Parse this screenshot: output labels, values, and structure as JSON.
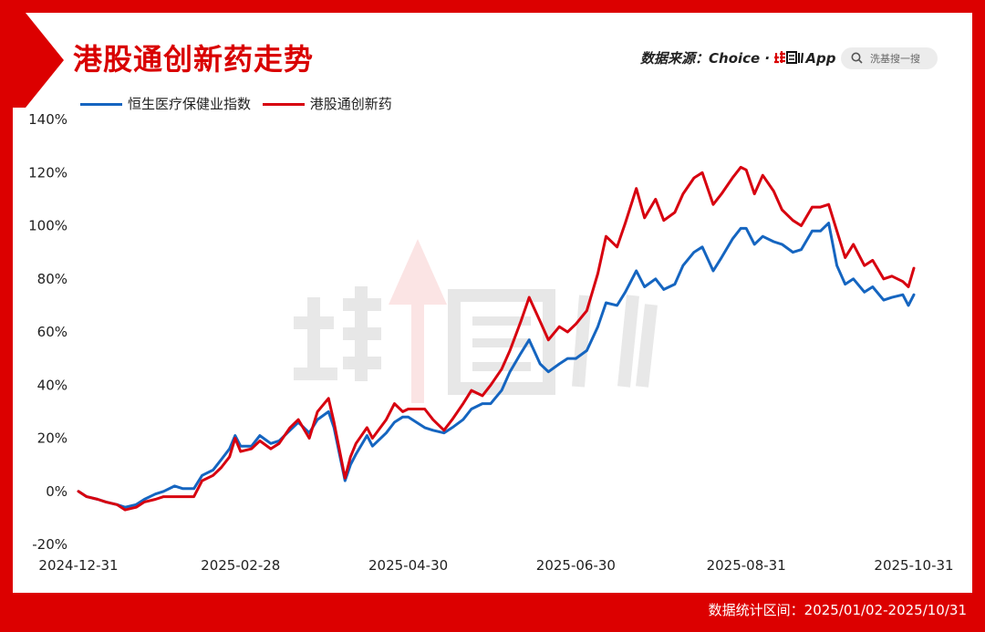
{
  "title": "港股通创新药走势",
  "source": {
    "label": "数据来源：Choice · ",
    "brand_logo": "韭圈儿",
    "app": "App"
  },
  "search": {
    "placeholder": "洗基搜一搜",
    "icon": "search-icon"
  },
  "footer": "数据统计区间：2025/01/02-2025/10/31",
  "watermark": "韭圈儿",
  "colors": {
    "accent": "#dc0000",
    "series1": "#1565c0",
    "series2": "#d7000f"
  },
  "chart_data": {
    "type": "line",
    "xlabel": "",
    "ylabel": "",
    "ylim": [
      -20,
      140
    ],
    "yticks": [
      "-20%",
      "0%",
      "20%",
      "40%",
      "60%",
      "80%",
      "100%",
      "120%",
      "140%"
    ],
    "xticks": [
      "2024-12-31",
      "2025-02-28",
      "2025-04-30",
      "2025-06-30",
      "2025-08-31",
      "2025-10-31"
    ],
    "grid": false,
    "legend": "top-left",
    "x_range": [
      "2024-12-31",
      "2025-10-31"
    ],
    "series": [
      {
        "name": "恒生医疗保健业指数",
        "color": "#1565c0",
        "points": [
          [
            "2024-12-31",
            0
          ],
          [
            "2025-01-03",
            -2
          ],
          [
            "2025-01-07",
            -3
          ],
          [
            "2025-01-10",
            -4
          ],
          [
            "2025-01-14",
            -5
          ],
          [
            "2025-01-17",
            -6
          ],
          [
            "2025-01-21",
            -5
          ],
          [
            "2025-01-24",
            -3
          ],
          [
            "2025-01-28",
            -1
          ],
          [
            "2025-01-31",
            0
          ],
          [
            "2025-02-04",
            2
          ],
          [
            "2025-02-07",
            1
          ],
          [
            "2025-02-11",
            1
          ],
          [
            "2025-02-14",
            6
          ],
          [
            "2025-02-18",
            8
          ],
          [
            "2025-02-21",
            12
          ],
          [
            "2025-02-24",
            16
          ],
          [
            "2025-02-26",
            21
          ],
          [
            "2025-02-28",
            17
          ],
          [
            "2025-03-04",
            17
          ],
          [
            "2025-03-07",
            21
          ],
          [
            "2025-03-11",
            18
          ],
          [
            "2025-03-14",
            19
          ],
          [
            "2025-03-18",
            23
          ],
          [
            "2025-03-21",
            26
          ],
          [
            "2025-03-25",
            22
          ],
          [
            "2025-03-28",
            27
          ],
          [
            "2025-04-01",
            30
          ],
          [
            "2025-04-03",
            24
          ],
          [
            "2025-04-07",
            4
          ],
          [
            "2025-04-09",
            10
          ],
          [
            "2025-04-11",
            14
          ],
          [
            "2025-04-15",
            21
          ],
          [
            "2025-04-17",
            17
          ],
          [
            "2025-04-22",
            22
          ],
          [
            "2025-04-25",
            26
          ],
          [
            "2025-04-28",
            28
          ],
          [
            "2025-04-30",
            28
          ],
          [
            "2025-05-06",
            24
          ],
          [
            "2025-05-09",
            23
          ],
          [
            "2025-05-13",
            22
          ],
          [
            "2025-05-16",
            24
          ],
          [
            "2025-05-20",
            27
          ],
          [
            "2025-05-23",
            31
          ],
          [
            "2025-05-27",
            33
          ],
          [
            "2025-05-30",
            33
          ],
          [
            "2025-06-03",
            38
          ],
          [
            "2025-06-06",
            45
          ],
          [
            "2025-06-10",
            52
          ],
          [
            "2025-06-13",
            57
          ],
          [
            "2025-06-17",
            48
          ],
          [
            "2025-06-20",
            45
          ],
          [
            "2025-06-24",
            48
          ],
          [
            "2025-06-27",
            50
          ],
          [
            "2025-06-30",
            50
          ],
          [
            "2025-07-04",
            53
          ],
          [
            "2025-07-08",
            62
          ],
          [
            "2025-07-11",
            71
          ],
          [
            "2025-07-15",
            70
          ],
          [
            "2025-07-18",
            75
          ],
          [
            "2025-07-22",
            83
          ],
          [
            "2025-07-25",
            77
          ],
          [
            "2025-07-29",
            80
          ],
          [
            "2025-08-01",
            76
          ],
          [
            "2025-08-05",
            78
          ],
          [
            "2025-08-08",
            85
          ],
          [
            "2025-08-12",
            90
          ],
          [
            "2025-08-15",
            92
          ],
          [
            "2025-08-19",
            83
          ],
          [
            "2025-08-22",
            88
          ],
          [
            "2025-08-26",
            95
          ],
          [
            "2025-08-29",
            99
          ],
          [
            "2025-08-31",
            99
          ],
          [
            "2025-09-03",
            93
          ],
          [
            "2025-09-06",
            96
          ],
          [
            "2025-09-10",
            94
          ],
          [
            "2025-09-13",
            93
          ],
          [
            "2025-09-17",
            90
          ],
          [
            "2025-09-20",
            91
          ],
          [
            "2025-09-24",
            98
          ],
          [
            "2025-09-27",
            98
          ],
          [
            "2025-09-30",
            101
          ],
          [
            "2025-10-03",
            85
          ],
          [
            "2025-10-06",
            78
          ],
          [
            "2025-10-09",
            80
          ],
          [
            "2025-10-13",
            75
          ],
          [
            "2025-10-16",
            77
          ],
          [
            "2025-10-20",
            72
          ],
          [
            "2025-10-23",
            73
          ],
          [
            "2025-10-27",
            74
          ],
          [
            "2025-10-29",
            70
          ],
          [
            "2025-10-31",
            74
          ]
        ]
      },
      {
        "name": "港股通创新药",
        "color": "#d7000f",
        "points": [
          [
            "2024-12-31",
            0
          ],
          [
            "2025-01-03",
            -2
          ],
          [
            "2025-01-07",
            -3
          ],
          [
            "2025-01-10",
            -4
          ],
          [
            "2025-01-14",
            -5
          ],
          [
            "2025-01-17",
            -7
          ],
          [
            "2025-01-21",
            -6
          ],
          [
            "2025-01-24",
            -4
          ],
          [
            "2025-01-28",
            -3
          ],
          [
            "2025-01-31",
            -2
          ],
          [
            "2025-02-04",
            -2
          ],
          [
            "2025-02-07",
            -2
          ],
          [
            "2025-02-11",
            -2
          ],
          [
            "2025-02-14",
            4
          ],
          [
            "2025-02-18",
            6
          ],
          [
            "2025-02-21",
            9
          ],
          [
            "2025-02-24",
            13
          ],
          [
            "2025-02-26",
            20
          ],
          [
            "2025-02-28",
            15
          ],
          [
            "2025-03-04",
            16
          ],
          [
            "2025-03-07",
            19
          ],
          [
            "2025-03-11",
            16
          ],
          [
            "2025-03-14",
            18
          ],
          [
            "2025-03-18",
            24
          ],
          [
            "2025-03-21",
            27
          ],
          [
            "2025-03-25",
            20
          ],
          [
            "2025-03-28",
            30
          ],
          [
            "2025-04-01",
            35
          ],
          [
            "2025-04-03",
            26
          ],
          [
            "2025-04-07",
            5
          ],
          [
            "2025-04-09",
            13
          ],
          [
            "2025-04-11",
            18
          ],
          [
            "2025-04-15",
            24
          ],
          [
            "2025-04-17",
            20
          ],
          [
            "2025-04-22",
            27
          ],
          [
            "2025-04-25",
            33
          ],
          [
            "2025-04-28",
            30
          ],
          [
            "2025-04-30",
            31
          ],
          [
            "2025-05-06",
            31
          ],
          [
            "2025-05-09",
            27
          ],
          [
            "2025-05-13",
            23
          ],
          [
            "2025-05-16",
            27
          ],
          [
            "2025-05-20",
            33
          ],
          [
            "2025-05-23",
            38
          ],
          [
            "2025-05-27",
            36
          ],
          [
            "2025-05-30",
            40
          ],
          [
            "2025-06-03",
            46
          ],
          [
            "2025-06-06",
            53
          ],
          [
            "2025-06-10",
            64
          ],
          [
            "2025-06-13",
            73
          ],
          [
            "2025-06-17",
            64
          ],
          [
            "2025-06-20",
            57
          ],
          [
            "2025-06-24",
            62
          ],
          [
            "2025-06-27",
            60
          ],
          [
            "2025-06-30",
            63
          ],
          [
            "2025-07-04",
            68
          ],
          [
            "2025-07-08",
            82
          ],
          [
            "2025-07-11",
            96
          ],
          [
            "2025-07-15",
            92
          ],
          [
            "2025-07-18",
            101
          ],
          [
            "2025-07-22",
            114
          ],
          [
            "2025-07-25",
            103
          ],
          [
            "2025-07-29",
            110
          ],
          [
            "2025-08-01",
            102
          ],
          [
            "2025-08-05",
            105
          ],
          [
            "2025-08-08",
            112
          ],
          [
            "2025-08-12",
            118
          ],
          [
            "2025-08-15",
            120
          ],
          [
            "2025-08-19",
            108
          ],
          [
            "2025-08-22",
            112
          ],
          [
            "2025-08-26",
            118
          ],
          [
            "2025-08-29",
            122
          ],
          [
            "2025-08-31",
            121
          ],
          [
            "2025-09-03",
            112
          ],
          [
            "2025-09-06",
            119
          ],
          [
            "2025-09-10",
            113
          ],
          [
            "2025-09-13",
            106
          ],
          [
            "2025-09-17",
            102
          ],
          [
            "2025-09-20",
            100
          ],
          [
            "2025-09-24",
            107
          ],
          [
            "2025-09-27",
            107
          ],
          [
            "2025-09-30",
            108
          ],
          [
            "2025-10-03",
            98
          ],
          [
            "2025-10-06",
            88
          ],
          [
            "2025-10-09",
            93
          ],
          [
            "2025-10-13",
            85
          ],
          [
            "2025-10-16",
            87
          ],
          [
            "2025-10-20",
            80
          ],
          [
            "2025-10-23",
            81
          ],
          [
            "2025-10-27",
            79
          ],
          [
            "2025-10-29",
            77
          ],
          [
            "2025-10-31",
            84
          ]
        ]
      }
    ]
  }
}
